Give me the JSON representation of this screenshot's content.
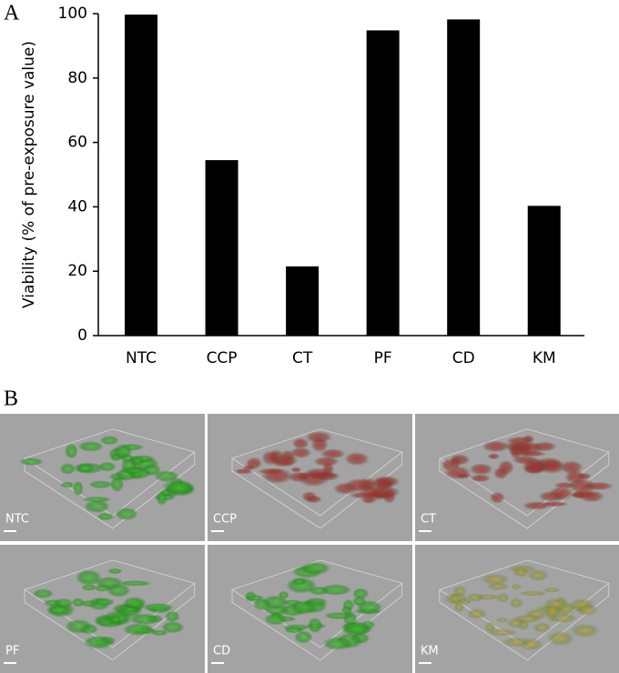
{
  "panel_labels": [
    "A",
    "B"
  ],
  "chart_data": {
    "type": "bar",
    "ylabel": "Viability (% of pre-exposure value)",
    "categories": [
      "NTC",
      "CCP",
      "CT",
      "PF",
      "CD",
      "KM"
    ],
    "values": [
      99.7,
      54.5,
      21.5,
      94.8,
      98.2,
      40.3
    ],
    "color": "#000000",
    "ylim": [
      0,
      100
    ],
    "yticks": [
      0,
      20,
      40,
      60,
      80,
      100
    ],
    "grid": false
  },
  "images": [
    {
      "label": "NTC"
    },
    {
      "label": "CCP"
    },
    {
      "label": "CT"
    },
    {
      "label": "PF"
    },
    {
      "label": "CD"
    },
    {
      "label": "KM"
    }
  ]
}
